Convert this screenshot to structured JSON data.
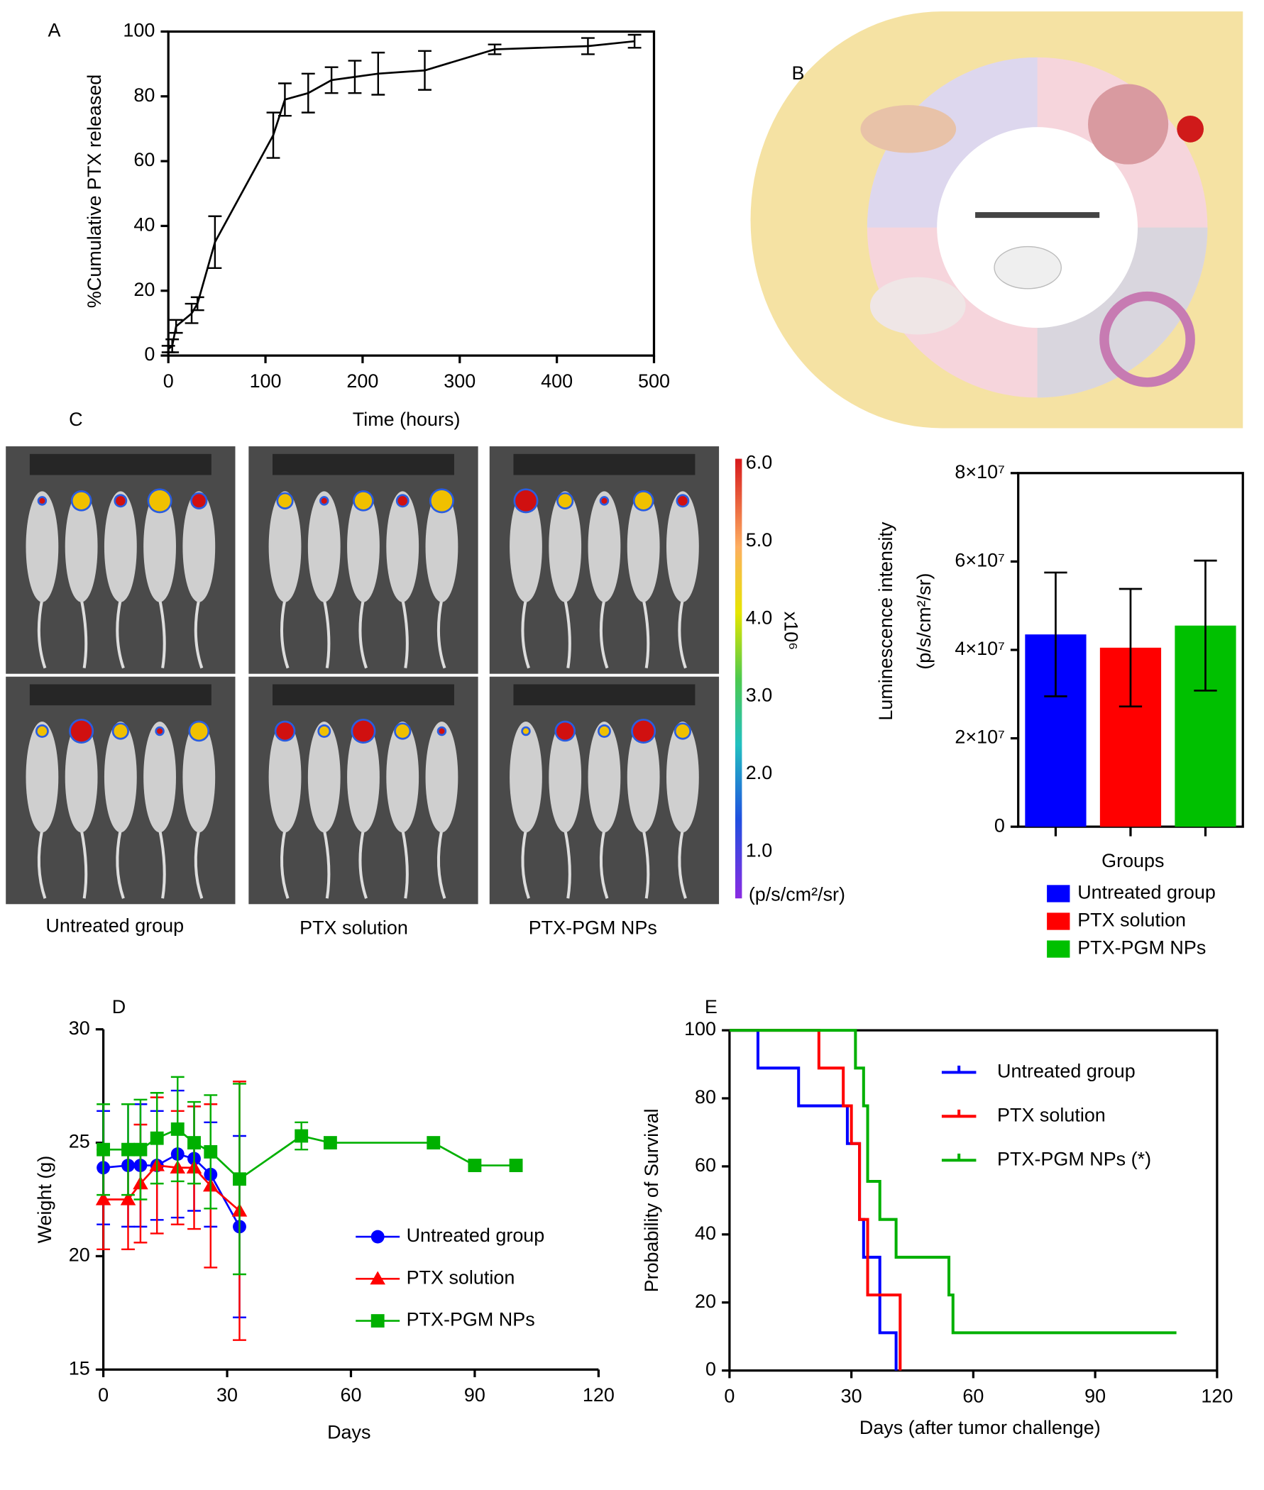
{
  "chart_data": [
    {
      "type": "line",
      "panel_label": "A",
      "x_label": "Time (hours)",
      "y_label": "%Cumulative PTX released",
      "x": [
        0,
        4,
        8,
        24,
        30,
        48,
        108,
        120,
        144,
        168,
        192,
        216,
        264,
        336,
        432,
        480
      ],
      "values": [
        2,
        3,
        9,
        13,
        16,
        35,
        68,
        79,
        81,
        85,
        86,
        87,
        88,
        94.5,
        95.5,
        97
      ],
      "errors": [
        1,
        2,
        2,
        3,
        2,
        8,
        7,
        5,
        6,
        4,
        5,
        6.5,
        6,
        1.5,
        2.5,
        2
      ],
      "color": "#000000",
      "xlim": [
        0,
        500
      ],
      "ylim": [
        0,
        100
      ],
      "xticks": [
        0,
        100,
        200,
        300,
        400,
        500
      ],
      "yticks": [
        0,
        20,
        40,
        60,
        80,
        100
      ]
    },
    {
      "type": "bar",
      "x_label": "Groups",
      "y_label": [
        "Luminescence intensity",
        "(p/s/cm²/sr)"
      ],
      "categories": [
        "Untreated group",
        "PTX solution",
        "PTX-PGM NPs"
      ],
      "colors": [
        "#0000ff",
        "#ff0000",
        "#00c000"
      ],
      "values": [
        43500000,
        40500000,
        45500000
      ],
      "errors": [
        14000000,
        13300000,
        14700000
      ],
      "ylim": [
        0,
        80000000
      ],
      "yticks": [
        0,
        {
          "value": 20000000,
          "label": "2×10⁷"
        },
        {
          "value": 40000000,
          "label": "4×10⁷"
        },
        {
          "value": 60000000,
          "label": "6×10⁷"
        },
        {
          "value": 80000000,
          "label": "8×10⁷"
        }
      ]
    },
    {
      "type": "line",
      "panel_label": "D",
      "x_label": "Days",
      "y_label": "Weight (g)",
      "series": [
        {
          "name": "Untreated group",
          "color": "#0000ff",
          "marker": "circle",
          "x": [
            0,
            6,
            9,
            13,
            18,
            22,
            26,
            33
          ],
          "values": [
            23.9,
            24,
            24,
            24,
            24.5,
            24.3,
            23.6,
            21.3
          ],
          "errors": [
            2.5,
            2.7,
            2.7,
            2.4,
            2.8,
            2.3,
            2.3,
            4
          ]
        },
        {
          "name": "PTX solution",
          "color": "#ff0000",
          "marker": "triangle",
          "x": [
            0,
            6,
            9,
            13,
            18,
            22,
            26,
            33
          ],
          "values": [
            22.5,
            22.5,
            23.2,
            24,
            23.9,
            23.9,
            23.1,
            22
          ],
          "errors": [
            2.2,
            2.2,
            2.6,
            3,
            2.5,
            2.7,
            3.6,
            5.7
          ]
        },
        {
          "name": "PTX-PGM NPs",
          "color": "#00b000",
          "marker": "square",
          "x": [
            0,
            6,
            9,
            13,
            18,
            22,
            26,
            33,
            48,
            55,
            80,
            90,
            100
          ],
          "values": [
            24.7,
            24.7,
            24.7,
            25.2,
            25.6,
            25,
            24.6,
            23.4,
            25.3,
            25,
            25,
            24,
            24
          ],
          "errors": [
            2,
            2,
            2.2,
            2,
            2.3,
            1.8,
            2.5,
            4.2,
            0.6,
            null,
            null,
            null,
            null
          ]
        }
      ],
      "xlim": [
        0,
        120
      ],
      "ylim": [
        15,
        30
      ],
      "xticks": [
        0,
        30,
        60,
        90,
        120
      ],
      "yticks": [
        15,
        20,
        25,
        30
      ]
    },
    {
      "type": "step",
      "panel_label": "E",
      "x_label": "Days (after tumor challenge)",
      "y_label": "Probability of Survival",
      "series": [
        {
          "name": "Untreated group",
          "color": "#0000ff",
          "x": [
            0,
            7,
            17,
            29,
            32,
            33,
            37,
            41
          ],
          "values": [
            100,
            88.9,
            77.8,
            66.7,
            44.4,
            33.3,
            11.1,
            0
          ]
        },
        {
          "name": "PTX solution",
          "color": "#ff0000",
          "x": [
            0,
            22,
            28,
            30,
            32,
            34,
            42
          ],
          "values": [
            100,
            88.9,
            77.8,
            66.7,
            44.4,
            22.2,
            0
          ]
        },
        {
          "name": "PTX-PGM NPs (*)",
          "color": "#00b000",
          "x": [
            0,
            31,
            33,
            34,
            37,
            41,
            54,
            55,
            110
          ],
          "values": [
            100,
            88.9,
            77.8,
            55.6,
            44.4,
            33.3,
            22.2,
            11.1,
            11.1
          ]
        }
      ],
      "xlim": [
        0,
        120
      ],
      "ylim": [
        0,
        100
      ],
      "xticks": [
        0,
        30,
        60,
        90,
        120
      ],
      "yticks": [
        0,
        20,
        40,
        60,
        80,
        100
      ]
    }
  ],
  "figure_parts": {
    "panel_B": "B",
    "panel_C": "C",
    "mouse_groups": [
      "Untreated group",
      "PTX solution",
      "PTX-PGM NPs"
    ],
    "colorbar": {
      "exponent": "x10⁶",
      "unit": "(p/s/cm²/sr)",
      "lim": [
        0.4,
        6
      ],
      "ticks": [
        {
          "value": 6,
          "label": "6.0"
        },
        {
          "value": 5,
          "label": "5.0"
        },
        {
          "value": 4,
          "label": "4.0"
        },
        {
          "value": 3,
          "label": "3.0"
        },
        {
          "value": 2,
          "label": "2.0"
        },
        {
          "value": 1,
          "label": "1.0"
        }
      ]
    }
  }
}
